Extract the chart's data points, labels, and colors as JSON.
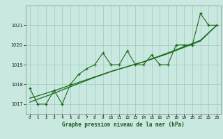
{
  "xlabel": "Graphe pression niveau de la mer (hPa)",
  "ylim": [
    1016.5,
    1022.0
  ],
  "xlim": [
    -0.5,
    23.5
  ],
  "yticks": [
    1017,
    1018,
    1019,
    1020,
    1021
  ],
  "xticks": [
    0,
    1,
    2,
    3,
    4,
    5,
    6,
    7,
    8,
    9,
    10,
    11,
    12,
    13,
    14,
    15,
    16,
    17,
    18,
    19,
    20,
    21,
    22,
    23
  ],
  "background_color": "#c8e8e0",
  "grid_color": "#a0c8c0",
  "line_color": "#1a6b1a",
  "s1": [
    1017.8,
    1017.0,
    1017.0,
    1017.7,
    1017.0,
    1018.0,
    1018.5,
    1018.8,
    1019.0,
    1019.6,
    1019.0,
    1019.0,
    1019.7,
    1019.0,
    1019.0,
    1019.5,
    1019.0,
    1019.0,
    1020.0,
    1020.0,
    1020.0,
    1021.6,
    1021.0,
    1021.0
  ],
  "t1": [
    1017.3,
    1017.42,
    1017.55,
    1017.68,
    1017.82,
    1017.96,
    1018.1,
    1018.24,
    1018.38,
    1018.52,
    1018.66,
    1018.78,
    1018.9,
    1019.02,
    1019.14,
    1019.28,
    1019.42,
    1019.56,
    1019.72,
    1019.88,
    1020.04,
    1020.2,
    1020.6,
    1021.0
  ],
  "t2": [
    1017.1,
    1017.25,
    1017.4,
    1017.55,
    1017.72,
    1017.88,
    1018.04,
    1018.2,
    1018.36,
    1018.5,
    1018.65,
    1018.78,
    1018.9,
    1019.03,
    1019.15,
    1019.3,
    1019.45,
    1019.6,
    1019.76,
    1019.92,
    1020.08,
    1020.24,
    1020.62,
    1021.0
  ]
}
